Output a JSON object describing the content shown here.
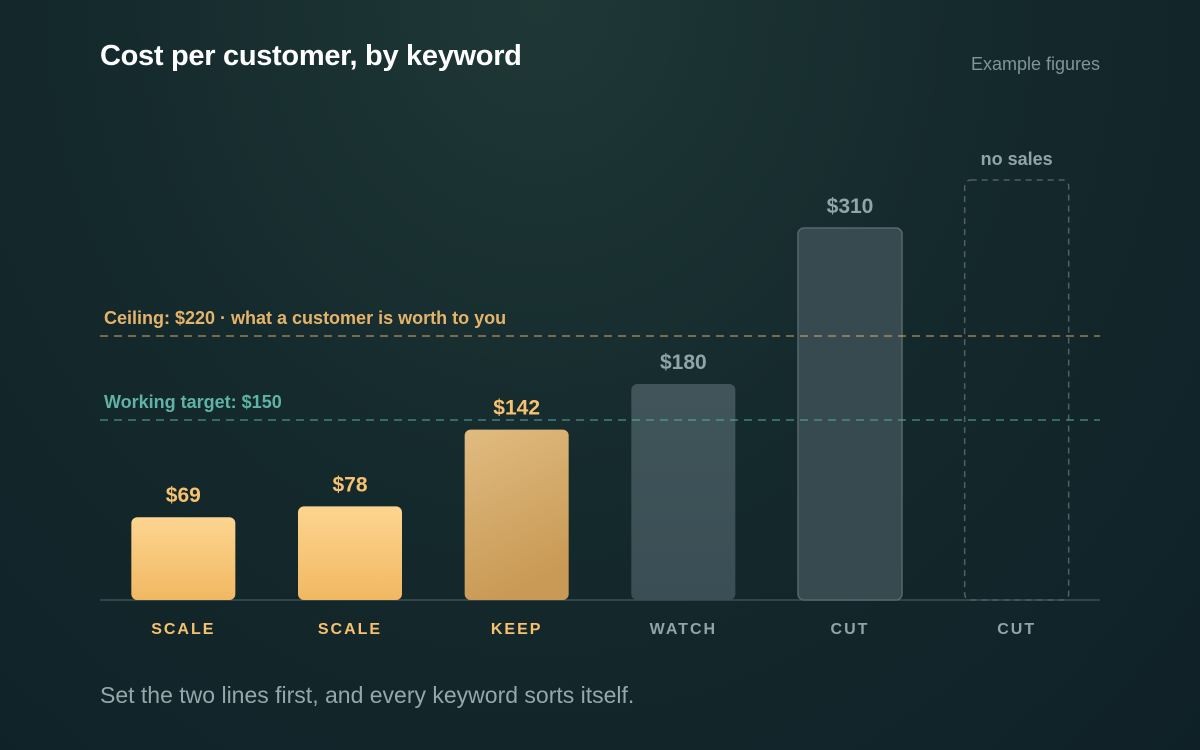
{
  "header": {
    "title": "Cost per customer, by keyword",
    "note": "Example figures"
  },
  "footer": {
    "text": "Set the two lines first, and every keyword sorts itself."
  },
  "colors": {
    "scale": "#f7c16f",
    "keep": "#d7a862",
    "watch": "#3d5257",
    "cut": "#364a4f",
    "ceiling": "#e5b46a",
    "target": "#5fb3a6",
    "muted": "#8fa5a8"
  },
  "chart_data": {
    "type": "bar",
    "categories": [
      "SCALE",
      "SCALE",
      "KEEP",
      "WATCH",
      "CUT",
      "CUT"
    ],
    "values": [
      69,
      78,
      142,
      180,
      310,
      null
    ],
    "value_labels": [
      "$69",
      "$78",
      "$142",
      "$180",
      "$310",
      "no sales"
    ],
    "statuses": [
      "scale",
      "scale",
      "keep",
      "watch",
      "cut",
      "nosales"
    ],
    "ylim": [
      0,
      350
    ],
    "reference_lines": [
      {
        "value": 220,
        "label": "Ceiling: $220 · what a customer is worth to you",
        "kind": "ceiling"
      },
      {
        "value": 150,
        "label": "Working target: $150",
        "kind": "target"
      }
    ]
  }
}
